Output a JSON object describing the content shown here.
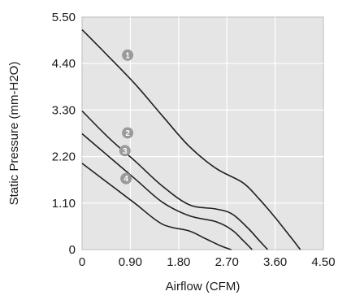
{
  "chart_data": {
    "type": "line",
    "xlabel": "Airflow (CFM)",
    "ylabel": "Static Pressure (mm-H2O)",
    "xlim": [
      0,
      4.5
    ],
    "ylim": [
      0,
      5.5
    ],
    "x_ticks": [
      "0",
      "0.90",
      "1.80",
      "2.70",
      "3.60",
      "4.50"
    ],
    "y_ticks": [
      "0",
      "1.10",
      "2.20",
      "3.30",
      "4.40",
      "5.50"
    ],
    "grid": true,
    "series": [
      {
        "name": "1",
        "x": [
          0,
          0.5,
          1.0,
          1.5,
          2.0,
          2.5,
          3.0,
          3.3,
          3.6,
          3.9,
          4.07
        ],
        "y": [
          5.2,
          4.56,
          3.9,
          3.16,
          2.44,
          1.92,
          1.58,
          1.2,
          0.76,
          0.28,
          0
        ]
      },
      {
        "name": "2",
        "x": [
          0,
          0.5,
          1.0,
          1.5,
          2.0,
          2.5,
          2.8,
          3.1,
          3.3,
          3.46
        ],
        "y": [
          3.28,
          2.64,
          2.08,
          1.5,
          1.06,
          0.96,
          0.84,
          0.5,
          0.22,
          0
        ]
      },
      {
        "name": "3",
        "x": [
          0,
          0.5,
          1.0,
          1.5,
          2.0,
          2.5,
          2.8,
          3.0,
          3.17
        ],
        "y": [
          2.74,
          2.2,
          1.66,
          1.12,
          0.8,
          0.66,
          0.46,
          0.22,
          0
        ]
      },
      {
        "name": "4",
        "x": [
          0,
          0.5,
          1.0,
          1.5,
          2.0,
          2.3,
          2.6,
          2.78
        ],
        "y": [
          2.04,
          1.56,
          1.08,
          0.6,
          0.44,
          0.26,
          0.08,
          0
        ]
      }
    ],
    "curve_labels": [
      {
        "text": "1",
        "x": 0.85,
        "y": 4.6
      },
      {
        "text": "2",
        "x": 0.85,
        "y": 2.76
      },
      {
        "text": "3",
        "x": 0.8,
        "y": 2.34
      },
      {
        "text": "4",
        "x": 0.82,
        "y": 1.68
      }
    ],
    "colors": {
      "plot_background": "#e5e5e5",
      "grid": "#ffffff",
      "line": "#1f1f1f",
      "badge": "#9a9a9a"
    }
  }
}
